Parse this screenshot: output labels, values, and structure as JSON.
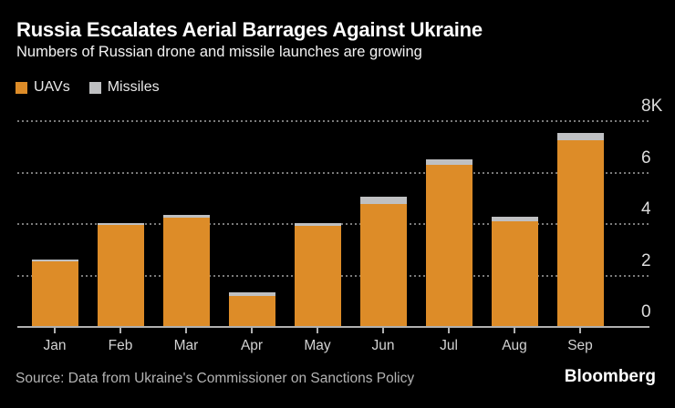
{
  "header": {
    "title": "Russia Escalates Aerial Barrages Against Ukraine",
    "subtitle": "Numbers of Russian drone and missile launches are growing"
  },
  "chart_data": {
    "type": "bar",
    "stacked": true,
    "categories": [
      "Jan",
      "Feb",
      "Mar",
      "Apr",
      "May",
      "Jun",
      "Jul",
      "Aug",
      "Sep"
    ],
    "series": [
      {
        "name": "UAVs",
        "color": "#dd8c28",
        "values": [
          2550,
          3960,
          4240,
          1200,
          3920,
          4790,
          6310,
          4100,
          7270
        ]
      },
      {
        "name": "Missiles",
        "color": "#bfc0c2",
        "values": [
          70,
          70,
          110,
          150,
          120,
          280,
          210,
          180,
          280
        ]
      }
    ],
    "title": "Russia Escalates Aerial Barrages Against Ukraine",
    "subtitle": "Numbers of Russian drone and missile launches are growing",
    "xlabel": "",
    "ylabel": "",
    "ylim": [
      0,
      8000
    ],
    "yticks": [
      {
        "value": 0,
        "label": "0"
      },
      {
        "value": 2000,
        "label": "2"
      },
      {
        "value": 4000,
        "label": "4"
      },
      {
        "value": 6000,
        "label": "6"
      },
      {
        "value": 8000,
        "label": "8K"
      }
    ],
    "grid": "horizontal-dotted",
    "axis_side": "right",
    "legend_position": "top-left"
  },
  "footer": {
    "source": "Source: Data from Ukraine's Commissioner on Sanctions Policy",
    "brand": "Bloomberg"
  },
  "colors": {
    "background": "#000000",
    "title": "#ffffff",
    "subtitle": "#f2f2f2",
    "gridline": "#7a7a7a",
    "baseline": "#b0b0b0",
    "axis_text": "#d6d6d6",
    "source_text": "#b3b3b3",
    "uav_orange": "#dd8c28",
    "missile_gray": "#bfc0c2"
  }
}
